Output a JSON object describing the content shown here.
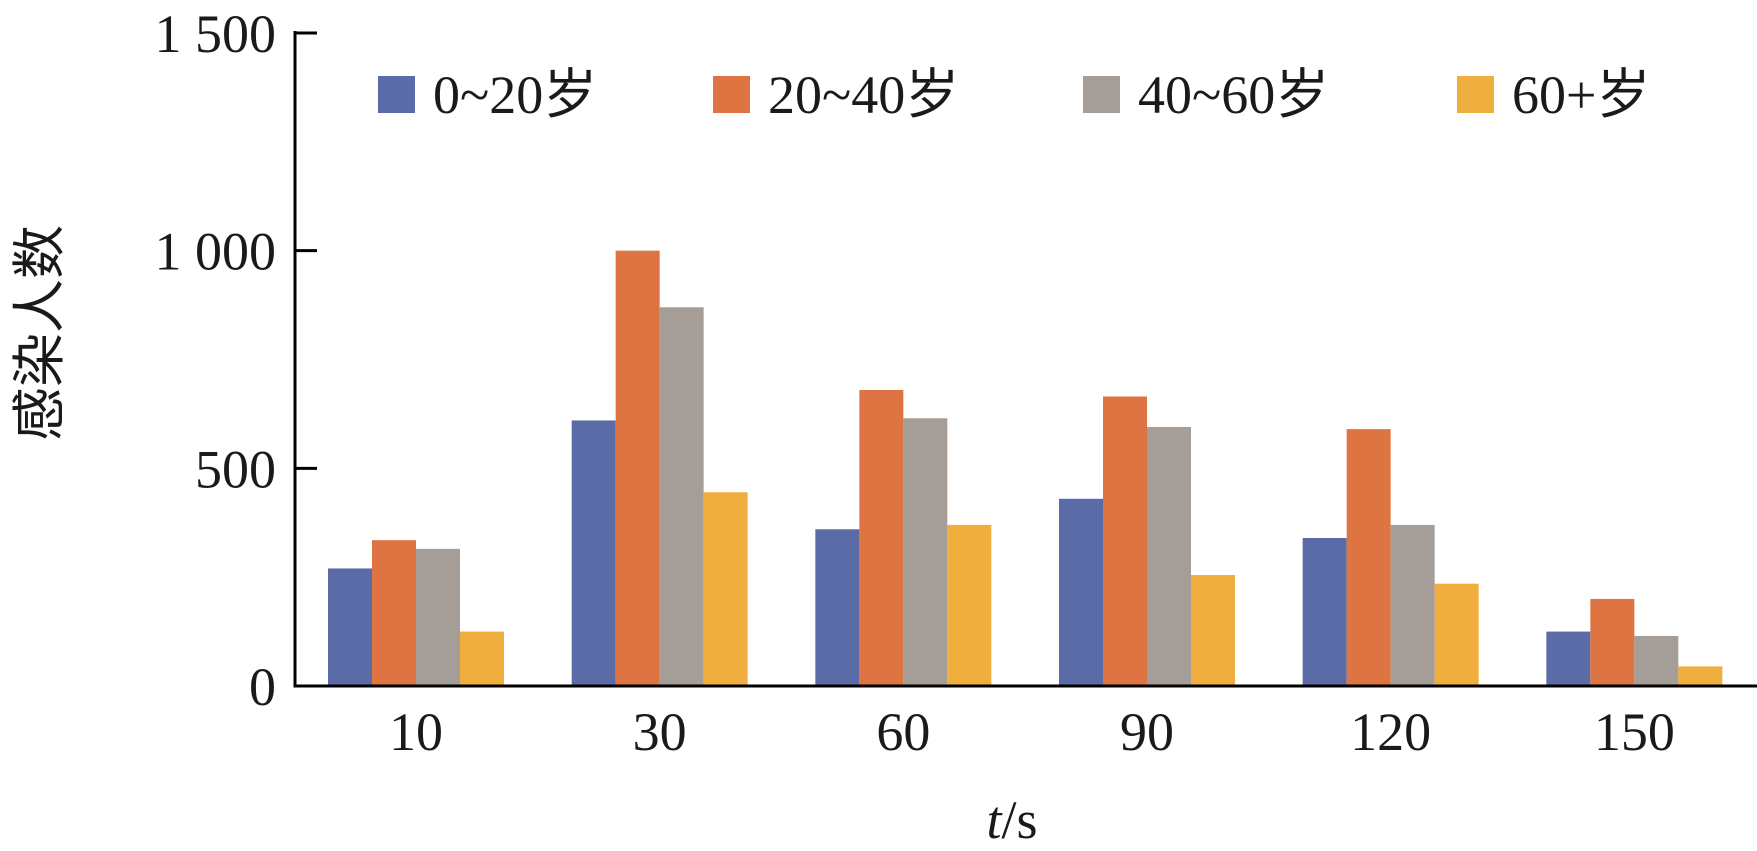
{
  "chart_data": {
    "type": "bar",
    "categories": [
      "10",
      "30",
      "60",
      "90",
      "120",
      "150"
    ],
    "series": [
      {
        "name": "0~20岁",
        "color": "#5b6ba7",
        "values": [
          270,
          610,
          360,
          430,
          340,
          125
        ]
      },
      {
        "name": "20~40岁",
        "color": "#df7443",
        "values": [
          335,
          1000,
          680,
          665,
          590,
          200
        ]
      },
      {
        "name": "40~60岁",
        "color": "#a59d98",
        "values": [
          315,
          870,
          615,
          595,
          370,
          115
        ]
      },
      {
        "name": "60+岁",
        "color": "#f0ae3e",
        "values": [
          125,
          445,
          370,
          255,
          235,
          45
        ]
      }
    ],
    "xlabel_italic": "t",
    "xlabel_rest": "/s",
    "ylabel": "感染人数",
    "ylim": [
      0,
      1500
    ],
    "yticks": [
      {
        "value": 0,
        "label": "0"
      },
      {
        "value": 500,
        "label": "500"
      },
      {
        "value": 1000,
        "label": "1 000"
      },
      {
        "value": 1500,
        "label": "1 500"
      }
    ],
    "grid": false,
    "legend_position": "top"
  }
}
